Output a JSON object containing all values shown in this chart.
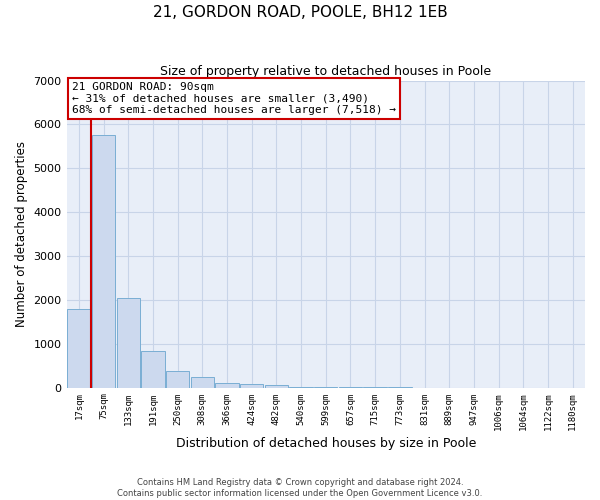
{
  "title": "21, GORDON ROAD, POOLE, BH12 1EB",
  "subtitle": "Size of property relative to detached houses in Poole",
  "xlabel": "Distribution of detached houses by size in Poole",
  "ylabel": "Number of detached properties",
  "bin_labels": [
    "17sqm",
    "75sqm",
    "133sqm",
    "191sqm",
    "250sqm",
    "308sqm",
    "366sqm",
    "424sqm",
    "482sqm",
    "540sqm",
    "599sqm",
    "657sqm",
    "715sqm",
    "773sqm",
    "831sqm",
    "889sqm",
    "947sqm",
    "1006sqm",
    "1064sqm",
    "1122sqm",
    "1180sqm"
  ],
  "bar_heights": [
    1800,
    5750,
    2050,
    830,
    370,
    230,
    105,
    70,
    55,
    20,
    10,
    5,
    3,
    2,
    1,
    1,
    0,
    0,
    0,
    0,
    0
  ],
  "bar_color": "#ccd9ee",
  "bar_edge_color": "#7aaed4",
  "annotation_text": "21 GORDON ROAD: 90sqm\n← 31% of detached houses are smaller (3,490)\n68% of semi-detached houses are larger (7,518) →",
  "annotation_box_color": "#ffffff",
  "annotation_box_edgecolor": "#cc0000",
  "grid_color": "#c8d4e8",
  "background_color": "#e8eef8",
  "ylim": [
    0,
    7000
  ],
  "yticks": [
    0,
    1000,
    2000,
    3000,
    4000,
    5000,
    6000,
    7000
  ],
  "footer_line1": "Contains HM Land Registry data © Crown copyright and database right 2024.",
  "footer_line2": "Contains public sector information licensed under the Open Government Licence v3.0."
}
